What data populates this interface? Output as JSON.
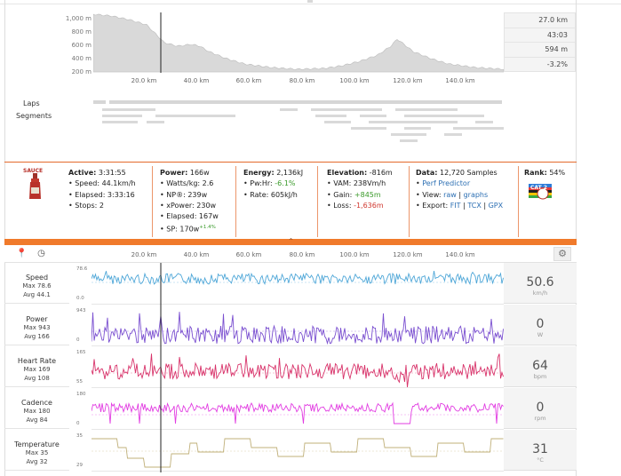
{
  "top_stats": [
    "27.0 km",
    "43:03",
    "594 m",
    "-3.2%"
  ],
  "elevation_axis": [
    "1,000 m",
    "800 m",
    "600 m",
    "400 m",
    "200 m"
  ],
  "distance_axis": [
    "20.0 km",
    "40.0 km",
    "60.0 km",
    "80.0 km",
    "100.0 km",
    "120.0 km",
    "140.0 km"
  ],
  "rows": {
    "laps": "Laps",
    "segments": "Segments"
  },
  "summary": {
    "logo_text": "SAUCE",
    "active": {
      "title": "Active:",
      "value": "3:31:55",
      "lines": [
        "Speed: 44.1km/h",
        "Elapsed: 3:33:16",
        "Stops: 2"
      ]
    },
    "power": {
      "title": "Power:",
      "value": "166w",
      "lines": [
        "Watts/kg: 2.6",
        "NP®: 239w",
        "xPower: 230w",
        "Elapsed: 167w"
      ],
      "sp_label": "SP: 170w",
      "sp_delta": "+1.4%"
    },
    "energy": {
      "title": "Energy:",
      "value": "2,136kJ",
      "pwhr_label": "Pw:Hr:",
      "pwhr_value": "-6.1%",
      "rate": "Rate: 605kJ/h"
    },
    "elevation": {
      "title": "Elevation:",
      "value": "-816m",
      "vam": "VAM: 238Vm/h",
      "gain_label": "Gain:",
      "gain_value": "+845m",
      "loss_label": "Loss:",
      "loss_value": "-1,636m"
    },
    "data": {
      "title": "Data:",
      "value": "12,720 Samples",
      "perf": "Perf Predictor",
      "view_label": "View:",
      "view_raw": "raw",
      "view_graphs": "graphs",
      "export_label": "Export:",
      "export_fit": "FIT",
      "export_tcx": "TCX",
      "export_gpx": "GPX"
    },
    "rank": {
      "title": "Rank:",
      "value": "54%",
      "badge": "CAT 2"
    }
  },
  "streams": [
    {
      "name": "Speed",
      "max": "Max 78.6",
      "avg": "Avg 44.1",
      "axis_top": "78.6",
      "axis_bot": "0.0",
      "value": "50.6",
      "unit": "km/h",
      "color": "#4fa7d8"
    },
    {
      "name": "Power",
      "max": "Max 943",
      "avg": "Avg 166",
      "axis_top": "943",
      "axis_bot": "0",
      "value": "0",
      "unit": "W",
      "color": "#7a4fd0"
    },
    {
      "name": "Heart Rate",
      "max": "Max 169",
      "avg": "Avg 108",
      "axis_top": "165",
      "axis_bot": "55",
      "value": "64",
      "unit": "bpm",
      "color": "#d8336a"
    },
    {
      "name": "Cadence",
      "max": "Max 180",
      "avg": "Avg 84",
      "axis_top": "180",
      "axis_bot": "0",
      "value": "0",
      "unit": "rpm",
      "color": "#e23de2"
    },
    {
      "name": "Temperature",
      "max": "Max 35",
      "avg": "Avg 32",
      "axis_top": "35",
      "axis_bot": "29",
      "value": "31",
      "unit": "°C",
      "color": "#c0b07a"
    }
  ]
}
